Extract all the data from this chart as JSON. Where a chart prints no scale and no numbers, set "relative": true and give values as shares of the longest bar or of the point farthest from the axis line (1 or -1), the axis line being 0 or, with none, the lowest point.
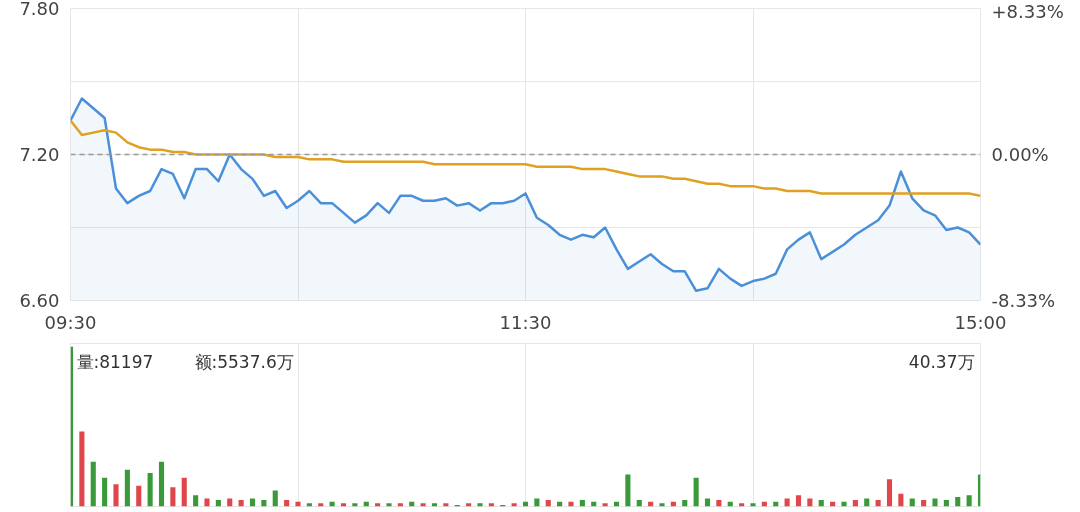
{
  "chart_data": [
    {
      "type": "line",
      "categories": [
        "09:30",
        null,
        null,
        null,
        null,
        null,
        null,
        null,
        null,
        null,
        null,
        null,
        null,
        null,
        null,
        null,
        null,
        null,
        null,
        null,
        null,
        null,
        null,
        null,
        null,
        null,
        null,
        null,
        null,
        null,
        null,
        null,
        null,
        null,
        null,
        null,
        null,
        null,
        null,
        null,
        "11:30",
        null,
        null,
        null,
        null,
        null,
        null,
        null,
        null,
        null,
        null,
        null,
        null,
        null,
        null,
        null,
        null,
        null,
        null,
        null,
        null,
        null,
        null,
        null,
        null,
        null,
        null,
        null,
        null,
        null,
        null,
        null,
        null,
        null,
        null,
        null,
        null,
        null,
        null,
        null,
        "15:00"
      ],
      "ylim": [
        6.6,
        7.8
      ],
      "yticks": [
        {
          "value": 6.6,
          "label": "6.60"
        },
        {
          "value": 6.9,
          "label": null
        },
        {
          "value": 7.2,
          "label": "7.20"
        },
        {
          "value": 7.5,
          "label": null
        },
        {
          "value": 7.8,
          "label": "7.80"
        }
      ],
      "y2lim": [
        -8.33,
        8.33
      ],
      "y2ticks": [
        {
          "value": -8.33,
          "label": "-8.33%"
        },
        {
          "value": 0,
          "label": "0.00%"
        },
        {
          "value": 8.33,
          "label": "+8.33%"
        }
      ],
      "grid": true,
      "ref_lines": [
        {
          "axis": "y",
          "value": 7.2,
          "color": "#999999",
          "line_style": "dashed"
        }
      ],
      "series": [
        {
          "type": "area",
          "color": "#4a90d9",
          "values": [
            7.34,
            7.43,
            7.39,
            7.35,
            7.06,
            7.0,
            7.03,
            7.05,
            7.14,
            7.12,
            7.02,
            7.14,
            7.14,
            7.09,
            7.2,
            7.14,
            7.1,
            7.03,
            7.05,
            6.98,
            7.01,
            7.05,
            7.0,
            7.0,
            6.96,
            6.92,
            6.95,
            7.0,
            6.96,
            7.03,
            7.03,
            7.01,
            7.01,
            7.02,
            6.99,
            7.0,
            6.97,
            7.0,
            7.0,
            7.01,
            7.04,
            6.94,
            6.91,
            6.87,
            6.85,
            6.87,
            6.86,
            6.9,
            6.81,
            6.73,
            6.76,
            6.79,
            6.75,
            6.72,
            6.72,
            6.64,
            6.65,
            6.73,
            6.69,
            6.66,
            6.68,
            6.69,
            6.71,
            6.81,
            6.85,
            6.88,
            6.77,
            6.8,
            6.83,
            6.87,
            6.9,
            6.93,
            6.99,
            7.13,
            7.02,
            6.97,
            6.95,
            6.89,
            6.9,
            6.88,
            6.83
          ]
        },
        {
          "type": "line",
          "color": "#e0a020",
          "values": [
            7.34,
            7.28,
            7.29,
            7.3,
            7.29,
            7.25,
            7.23,
            7.22,
            7.22,
            7.21,
            7.21,
            7.2,
            7.2,
            7.2,
            7.2,
            7.2,
            7.2,
            7.2,
            7.19,
            7.19,
            7.19,
            7.18,
            7.18,
            7.18,
            7.17,
            7.17,
            7.17,
            7.17,
            7.17,
            7.17,
            7.17,
            7.17,
            7.16,
            7.16,
            7.16,
            7.16,
            7.16,
            7.16,
            7.16,
            7.16,
            7.16,
            7.15,
            7.15,
            7.15,
            7.15,
            7.14,
            7.14,
            7.14,
            7.13,
            7.12,
            7.11,
            7.11,
            7.11,
            7.1,
            7.1,
            7.09,
            7.08,
            7.08,
            7.07,
            7.07,
            7.07,
            7.06,
            7.06,
            7.05,
            7.05,
            7.05,
            7.04,
            7.04,
            7.04,
            7.04,
            7.04,
            7.04,
            7.04,
            7.04,
            7.04,
            7.04,
            7.04,
            7.04,
            7.04,
            7.04,
            7.03
          ]
        }
      ]
    },
    {
      "type": "bar",
      "relative": true,
      "tick_labels": false,
      "grid": "x",
      "annotations": [
        "量:81197",
        "额:5537.6万",
        "40.37万"
      ],
      "categories": [
        null,
        null,
        null,
        null,
        null,
        null,
        null,
        null,
        null,
        null,
        null,
        null,
        null,
        null,
        null,
        null,
        null,
        null,
        null,
        null,
        null,
        null,
        null,
        null,
        null,
        null,
        null,
        null,
        null,
        null,
        null,
        null,
        null,
        null,
        null,
        null,
        null,
        null,
        null,
        null,
        null,
        null,
        null,
        null,
        null,
        null,
        null,
        null,
        null,
        null,
        null,
        null,
        null,
        null,
        null,
        null,
        null,
        null,
        null,
        null,
        null,
        null,
        null,
        null,
        null,
        null,
        null,
        null,
        null,
        null,
        null,
        null,
        null,
        null,
        null,
        null,
        null,
        null,
        null,
        null,
        null
      ],
      "values": [
        1.0,
        0.47,
        0.28,
        0.18,
        0.14,
        0.23,
        0.13,
        0.21,
        0.28,
        0.12,
        0.18,
        0.07,
        0.05,
        0.04,
        0.05,
        0.04,
        0.05,
        0.04,
        0.1,
        0.04,
        0.03,
        0.02,
        0.02,
        0.03,
        0.02,
        0.02,
        0.03,
        0.02,
        0.02,
        0.02,
        0.03,
        0.02,
        0.02,
        0.02,
        0.01,
        0.02,
        0.02,
        0.02,
        0.01,
        0.02,
        0.03,
        0.05,
        0.04,
        0.03,
        0.03,
        0.04,
        0.03,
        0.02,
        0.03,
        0.2,
        0.04,
        0.03,
        0.02,
        0.03,
        0.04,
        0.18,
        0.05,
        0.04,
        0.03,
        0.02,
        0.02,
        0.03,
        0.03,
        0.05,
        0.07,
        0.05,
        0.04,
        0.03,
        0.03,
        0.04,
        0.05,
        0.04,
        0.17,
        0.08,
        0.05,
        0.04,
        0.05,
        0.04,
        0.06,
        0.07,
        0.2
      ],
      "colors": [
        "#3a9a3a",
        "#e0474c",
        "#3a9a3a",
        "#3a9a3a",
        "#e0474c",
        "#3a9a3a",
        "#e0474c",
        "#3a9a3a",
        "#3a9a3a",
        "#e0474c",
        "#e0474c",
        "#3a9a3a",
        "#e0474c",
        "#3a9a3a",
        "#e0474c",
        "#e0474c",
        "#3a9a3a",
        "#3a9a3a",
        "#3a9a3a",
        "#e0474c",
        "#e0474c",
        "#3a9a3a",
        "#e0474c",
        "#3a9a3a",
        "#e0474c",
        "#3a9a3a",
        "#3a9a3a",
        "#e0474c",
        "#3a9a3a",
        "#e0474c",
        "#3a9a3a",
        "#e0474c",
        "#3a9a3a",
        "#e0474c",
        "#3a9a3a",
        "#e0474c",
        "#3a9a3a",
        "#e0474c",
        "#3a9a3a",
        "#e0474c",
        "#3a9a3a",
        "#3a9a3a",
        "#e0474c",
        "#3a9a3a",
        "#e0474c",
        "#3a9a3a",
        "#3a9a3a",
        "#e0474c",
        "#3a9a3a",
        "#3a9a3a",
        "#3a9a3a",
        "#e0474c",
        "#3a9a3a",
        "#e0474c",
        "#3a9a3a",
        "#3a9a3a",
        "#3a9a3a",
        "#e0474c",
        "#3a9a3a",
        "#e0474c",
        "#3a9a3a",
        "#e0474c",
        "#3a9a3a",
        "#e0474c",
        "#e0474c",
        "#e0474c",
        "#3a9a3a",
        "#e0474c",
        "#3a9a3a",
        "#e0474c",
        "#3a9a3a",
        "#e0474c",
        "#e0474c",
        "#e0474c",
        "#3a9a3a",
        "#e0474c",
        "#3a9a3a",
        "#3a9a3a",
        "#3a9a3a",
        "#3a9a3a",
        "#3a9a3a"
      ]
    }
  ]
}
